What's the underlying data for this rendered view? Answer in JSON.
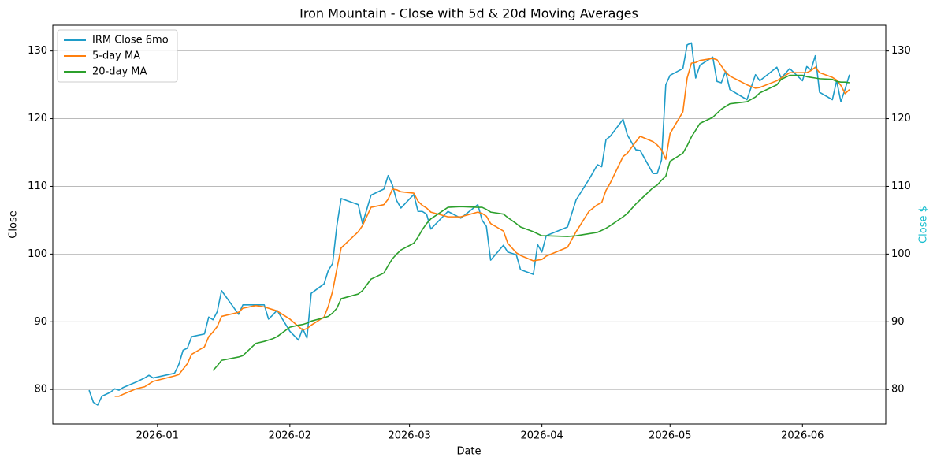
{
  "chart_data": {
    "type": "line",
    "title": "Iron Mountain - Close with 5d & 20d Moving Averages",
    "xlabel": "Date",
    "ylabel": "Close",
    "y2label": "Close $",
    "y2color": "#17becf",
    "x": [
      20438,
      20439,
      20440,
      20441,
      20443,
      20444,
      20445,
      20446,
      20449,
      20451,
      20452,
      20453,
      20458,
      20459,
      20460,
      20461,
      20462,
      20465,
      20466,
      20467,
      20468,
      20469,
      20473,
      20474,
      20477,
      20479,
      20480,
      20481,
      20482,
      20485,
      20487,
      20488,
      20489,
      20490,
      20493,
      20494,
      20495,
      20496,
      20497,
      20501,
      20502,
      20504,
      20507,
      20508,
      20509,
      20510,
      20511,
      20514,
      20515,
      20516,
      20517,
      20518,
      20522,
      20525,
      20529,
      20530,
      20531,
      20532,
      20535,
      20536,
      20538,
      20539,
      20542,
      20543,
      20544,
      20545,
      20550,
      20552,
      20555,
      20557,
      20558,
      20559,
      20560,
      20563,
      20564,
      20566,
      20567,
      20570,
      20571,
      20572,
      20573,
      20574,
      20577,
      20578,
      20579,
      20580,
      20581,
      20584,
      20585,
      20586,
      20587,
      20588,
      20592,
      20594,
      20595,
      20599,
      20600,
      20602,
      20605,
      20606,
      20607,
      20608,
      20609,
      20612,
      20613,
      20614,
      20615,
      20616
    ],
    "series": [
      {
        "name": "IRM Close 6mo",
        "color": "#1f9cc8",
        "values": [
          79.9,
          78.1,
          77.7,
          79.0,
          79.6,
          80.1,
          79.9,
          80.3,
          81.1,
          81.7,
          82.1,
          81.7,
          82.4,
          83.7,
          85.8,
          86.1,
          87.8,
          88.2,
          90.7,
          90.3,
          91.5,
          94.6,
          91.1,
          92.5,
          92.5,
          92.5,
          90.4,
          91.0,
          91.7,
          88.6,
          87.3,
          89.0,
          87.6,
          94.2,
          95.6,
          97.6,
          98.6,
          104.2,
          108.2,
          107.3,
          104.5,
          108.7,
          109.6,
          111.6,
          110.2,
          107.9,
          106.8,
          108.8,
          106.3,
          106.3,
          105.9,
          103.7,
          106.3,
          105.3,
          107.3,
          105.0,
          104.1,
          99.1,
          101.3,
          100.3,
          99.9,
          97.7,
          97.0,
          101.4,
          100.3,
          102.7,
          104.0,
          108.0,
          111.0,
          113.2,
          112.9,
          116.9,
          117.4,
          119.9,
          117.6,
          115.4,
          115.3,
          111.9,
          111.9,
          113.9,
          125.0,
          126.4,
          127.4,
          130.9,
          131.2,
          126.0,
          127.9,
          129.1,
          125.5,
          125.3,
          127.0,
          124.3,
          122.8,
          126.5,
          125.6,
          127.6,
          126.0,
          127.4,
          125.6,
          127.7,
          127.2,
          129.3,
          123.9,
          122.8,
          125.6,
          122.5,
          124.4,
          126.5
        ]
      },
      {
        "name": "5-day MA",
        "color": "#ff7f0e",
        "values": [
          null,
          null,
          null,
          null,
          null,
          79.0,
          79.0,
          79.3,
          80.1,
          80.4,
          80.8,
          81.2,
          82.0,
          82.2,
          83.0,
          83.8,
          85.2,
          86.3,
          87.8,
          88.5,
          89.3,
          90.8,
          91.4,
          92.0,
          92.4,
          92.2,
          92.0,
          91.8,
          91.6,
          90.4,
          89.3,
          88.8,
          89.0,
          89.5,
          90.7,
          92.3,
          94.5,
          97.8,
          100.9,
          103.3,
          104.2,
          106.9,
          107.3,
          108.1,
          109.6,
          109.5,
          109.2,
          109.0,
          107.8,
          107.2,
          106.8,
          106.2,
          105.5,
          105.5,
          106.2,
          106.0,
          105.6,
          104.5,
          103.4,
          101.6,
          100.2,
          99.8,
          99.0,
          99.1,
          99.2,
          99.7,
          101.0,
          103.3,
          106.3,
          107.3,
          107.6,
          109.4,
          110.5,
          114.4,
          114.9,
          116.6,
          117.4,
          116.6,
          116.1,
          115.4,
          114.0,
          117.8,
          121.0,
          126.0,
          128.2,
          128.3,
          128.6,
          128.9,
          128.7,
          127.8,
          126.9,
          126.3,
          125.0,
          124.5,
          124.6,
          125.6,
          126.0,
          126.8,
          126.8,
          126.8,
          127.1,
          127.6,
          126.8,
          126.1,
          125.7,
          124.9,
          123.7,
          124.3
        ]
      },
      {
        "name": "20-day MA",
        "color": "#2ca02c",
        "values": [
          null,
          null,
          null,
          null,
          null,
          null,
          null,
          null,
          null,
          null,
          null,
          null,
          null,
          null,
          null,
          null,
          null,
          null,
          null,
          82.8,
          83.5,
          84.3,
          84.8,
          85.0,
          86.8,
          87.1,
          87.3,
          87.5,
          87.8,
          89.2,
          89.5,
          89.6,
          89.8,
          90.1,
          90.6,
          90.8,
          91.3,
          92.0,
          93.4,
          94.1,
          94.6,
          96.3,
          97.2,
          98.3,
          99.3,
          100.0,
          100.6,
          101.6,
          102.5,
          103.6,
          104.5,
          105.2,
          106.9,
          107.0,
          106.9,
          106.9,
          106.6,
          106.2,
          105.9,
          105.4,
          104.5,
          104.0,
          103.3,
          103.0,
          102.7,
          102.7,
          102.6,
          102.7,
          103.0,
          103.2,
          103.5,
          103.8,
          104.2,
          105.5,
          106.0,
          107.4,
          108.0,
          109.8,
          110.2,
          110.9,
          111.5,
          113.7,
          114.9,
          116.0,
          117.3,
          118.3,
          119.3,
          120.2,
          120.8,
          121.4,
          121.8,
          122.2,
          122.5,
          123.2,
          123.8,
          125.0,
          125.8,
          126.4,
          126.4,
          126.2,
          126.1,
          126.0,
          125.9,
          125.8,
          125.5,
          125.4,
          125.4,
          125.3
        ]
      }
    ],
    "xlim": [
      20429.5,
      20624.5
    ],
    "xticks": [
      {
        "value": 20454,
        "label": "2026-01"
      },
      {
        "value": 20485,
        "label": "2026-02"
      },
      {
        "value": 20513,
        "label": "2026-03"
      },
      {
        "value": 20544,
        "label": "2026-04"
      },
      {
        "value": 20574,
        "label": "2026-05"
      },
      {
        "value": 20605,
        "label": "2026-06"
      }
    ],
    "ylim": [
      74.9,
      133.8
    ],
    "yticks": [
      80,
      90,
      100,
      110,
      120,
      130
    ],
    "y2lim": [
      74.9,
      133.8
    ],
    "y2ticks": [
      80,
      90,
      100,
      110,
      120,
      130
    ],
    "grid": "y",
    "legend": "upper-left"
  }
}
